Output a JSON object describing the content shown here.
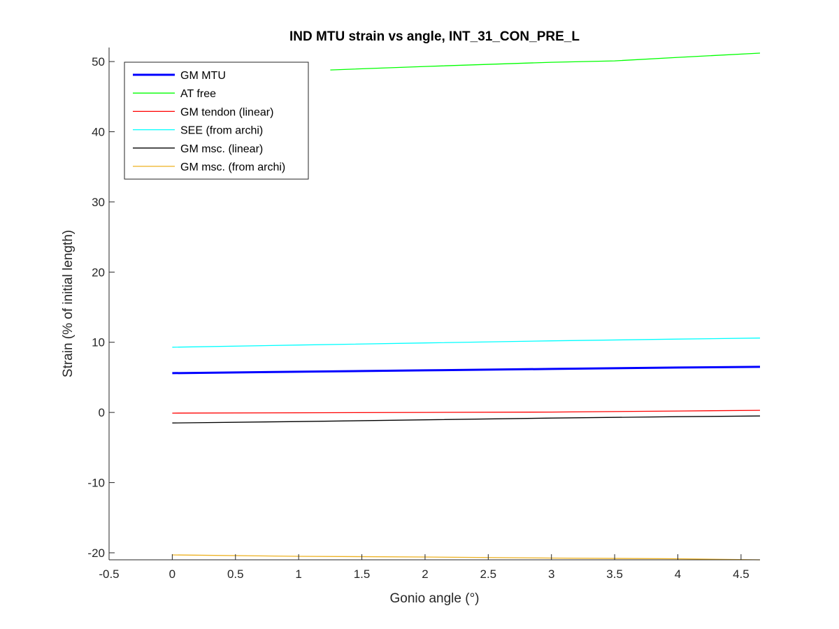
{
  "chart_data": {
    "type": "line",
    "title": "IND MTU strain vs angle, INT_31_CON_PRE_L",
    "xlabel": "Gonio angle (°)",
    "ylabel": "Strain (% of initial length)",
    "xlim": [
      -0.5,
      4.65
    ],
    "ylim": [
      -21,
      52
    ],
    "xticks": [
      -0.5,
      0,
      0.5,
      1,
      1.5,
      2,
      2.5,
      3,
      3.5,
      4,
      4.5
    ],
    "xtick_labels": [
      "-0.5",
      "0",
      "0.5",
      "1",
      "1.5",
      "2",
      "2.5",
      "3",
      "3.5",
      "4",
      "4.5"
    ],
    "yticks": [
      -20,
      -10,
      0,
      10,
      20,
      30,
      40,
      50
    ],
    "ytick_labels": [
      "-20",
      "-10",
      "0",
      "10",
      "20",
      "30",
      "40",
      "50"
    ],
    "grid": false,
    "legend_position": "top-left",
    "series": [
      {
        "name": "GM MTU",
        "color": "#0000ff",
        "width": 3,
        "x": [
          0,
          1,
          2,
          3,
          4,
          4.65
        ],
        "y": [
          5.6,
          5.8,
          6.0,
          6.2,
          6.4,
          6.5
        ]
      },
      {
        "name": "AT free",
        "color": "#00ff00",
        "width": 1.3,
        "x": [
          1.25,
          2,
          3,
          3.5,
          4,
          4.65
        ],
        "y": [
          48.8,
          49.3,
          49.9,
          50.1,
          50.6,
          51.2
        ]
      },
      {
        "name": "GM tendon (linear)",
        "color": "#ff0000",
        "width": 1.3,
        "x": [
          0,
          1,
          2,
          3,
          4,
          4.65
        ],
        "y": [
          -0.1,
          -0.05,
          0.0,
          0.05,
          0.2,
          0.3
        ]
      },
      {
        "name": "SEE (from archi)",
        "color": "#00ffff",
        "width": 1.3,
        "x": [
          0,
          1,
          2,
          3,
          4,
          4.65
        ],
        "y": [
          9.3,
          9.6,
          9.9,
          10.2,
          10.45,
          10.6
        ]
      },
      {
        "name": "GM msc. (linear)",
        "color": "#000000",
        "width": 1.3,
        "x": [
          0,
          1,
          2,
          3,
          4,
          4.65
        ],
        "y": [
          -1.5,
          -1.3,
          -1.05,
          -0.8,
          -0.6,
          -0.5
        ]
      },
      {
        "name": "GM msc. (from archi)",
        "color": "#edb120",
        "width": 1.3,
        "x": [
          0,
          1,
          2,
          3,
          4,
          4.65
        ],
        "y": [
          -20.3,
          -20.5,
          -20.6,
          -20.75,
          -20.85,
          -21.0
        ]
      }
    ]
  }
}
